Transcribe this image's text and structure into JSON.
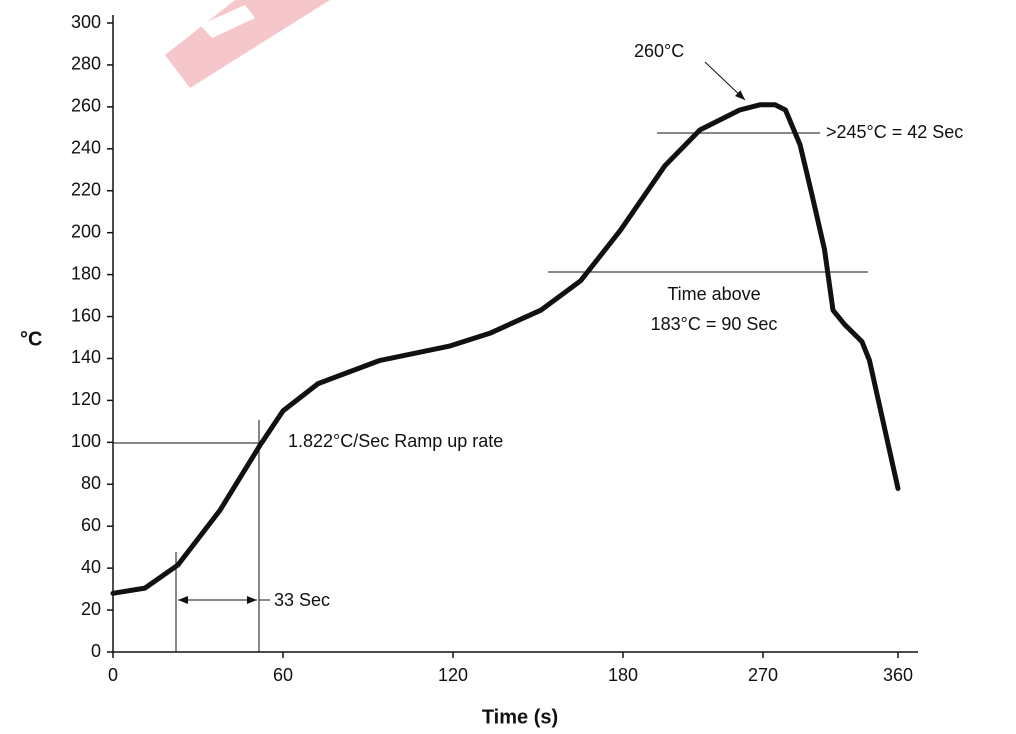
{
  "chart_data": {
    "type": "line",
    "x_label": "Time (s)",
    "y_label": "°C",
    "x": [
      0,
      11.3,
      22.9,
      37.8,
      51.9,
      60,
      72.4,
      94,
      119,
      133,
      151,
      165,
      179,
      207,
      229.5,
      255,
      268,
      278,
      285,
      294.7,
      302.7,
      311,
      316.7,
      324.7,
      336,
      341,
      360
    ],
    "series": [
      {
        "color": "#111111",
        "values": [
          28,
          30.5,
          41.5,
          67.7,
          98.7,
          115,
          128,
          139,
          146,
          152,
          163,
          177,
          201,
          232,
          249,
          258.5,
          261,
          261,
          258.5,
          242,
          218,
          192,
          163,
          156,
          148,
          139,
          78
        ]
      }
    ],
    "xlim": [
      0,
      372
    ],
    "ylim": [
      0,
      300
    ],
    "xticks": [
      0,
      60,
      120,
      180,
      270,
      360
    ],
    "yticks": [
      0,
      20,
      40,
      60,
      80,
      100,
      120,
      140,
      160,
      180,
      200,
      220,
      240,
      260,
      280,
      300
    ],
    "annotations": [
      "260°C",
      ">245°C = 42 Sec",
      "Time above",
      "183°C = 90 Sec",
      "1.822°C/Sec Ramp up rate",
      "33 Sec"
    ],
    "grid": false
  }
}
